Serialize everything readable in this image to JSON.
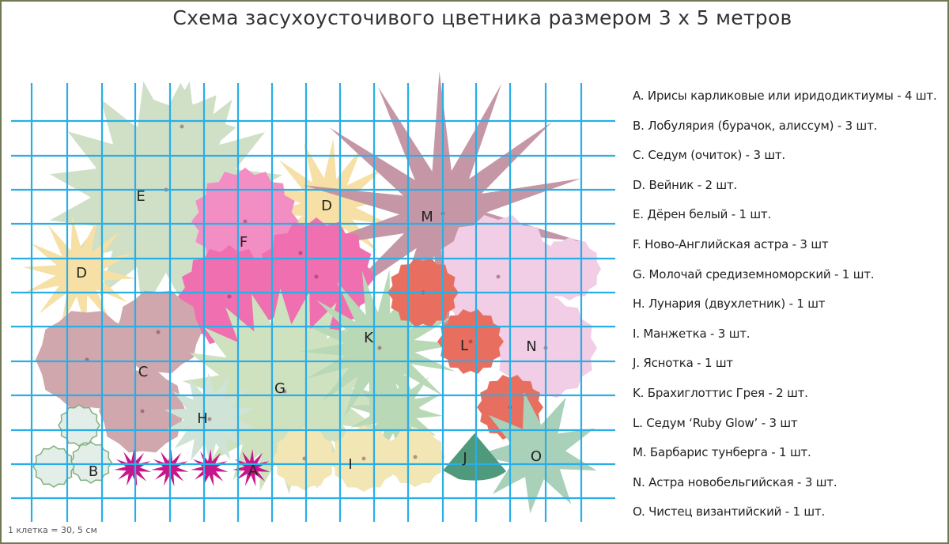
{
  "title": "Схема засухоусточивого цветника размером 3  х  5 метров",
  "scale_note": "1 клетка = 30, 5 см",
  "legend": [
    "A. Ирисы карликовые или иридодиктиумы - 4 шт.",
    "B. Лобулярия (бурачок, алиссум) - 3 шт.",
    "C. Седум (очиток) - 3 шт.",
    "D. Вейник - 2 шт.",
    "E. Дёрен белый - 1 шт.",
    "F. Ново-Английская астра - 3 шт",
    "G. Молочай средиземноморский - 1 шт.",
    "H. Лунария (двухлетник) - 1 шт",
    "I. Манжетка - 3 шт.",
    "J. Яснотка - 1 шт",
    "K. Брахиглоттис Грея - 2 шт.",
    "L. Седум ‘Ruby Glow’ - 3 шт",
    "M. Барбарис тунберга - 1 шт.",
    "N. Астра новобельгийская - 3 шт.",
    "O. Чистец византийский - 1 шт."
  ],
  "plant_letters": [
    "A",
    "B",
    "C",
    "D",
    "D",
    "E",
    "F",
    "G",
    "H",
    "I",
    "J",
    "K",
    "L",
    "M",
    "N",
    "O"
  ],
  "colors": {
    "grid": "#29aee6",
    "E": "#cfe0c6",
    "D": "#f7e0a6",
    "M": "#c291a1",
    "F": "#f28ec4",
    "F_dark": "#ef6fb0",
    "L": "#e86f5f",
    "N": "#f1cde6",
    "C": "#cfa7ad",
    "G": "#cfe2c0",
    "K": "#b9d8b6",
    "H": "#cfe3d6",
    "I": "#f1e6b4",
    "J": "#4f9a7c",
    "O": "#a9d1ba",
    "A": "#c6168c",
    "B": "#e4eee9",
    "B_outline": "#7fb07e"
  }
}
